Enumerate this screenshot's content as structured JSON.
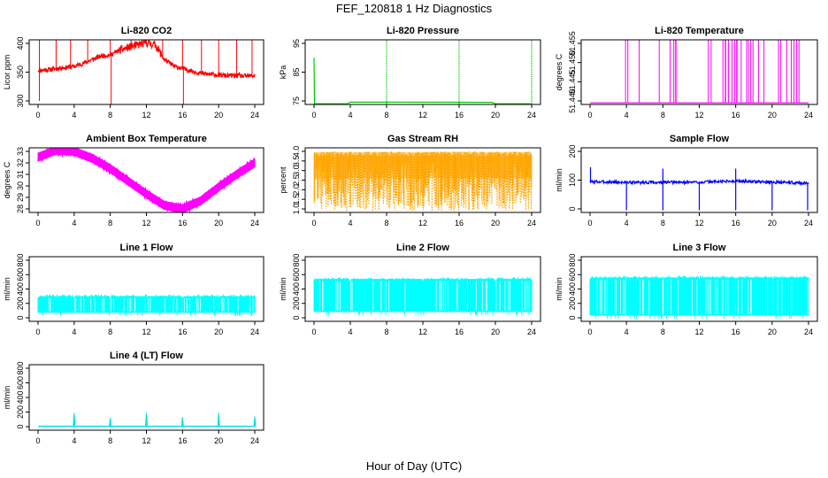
{
  "figure": {
    "title": "FEF_120818  1 Hz Diagnostics",
    "xlabel": "Hour of Day (UTC)"
  },
  "chart_data": [
    {
      "type": "line",
      "title": "Li-820 CO2",
      "ylabel": "Licor ppm",
      "xlim": [
        0,
        24
      ],
      "ylim": [
        300,
        400
      ],
      "xticks": [
        "0",
        "4",
        "8",
        "12",
        "16",
        "20",
        "24"
      ],
      "yticks": [
        {
          "v": 300,
          "label": "300"
        },
        {
          "v": 350,
          "label": "350"
        },
        {
          "v": 400,
          "label": "400"
        }
      ],
      "color": "#ff0000",
      "render": "co2",
      "series": {
        "x": [
          0,
          1,
          2,
          3,
          4,
          5,
          6,
          7,
          8,
          9,
          10,
          11,
          12,
          13,
          14,
          15,
          16,
          17,
          18,
          19,
          20,
          21,
          22,
          23,
          24
        ],
        "y": [
          353,
          354,
          356,
          358,
          360,
          365,
          372,
          378,
          380,
          388,
          393,
          397,
          401,
          397,
          372,
          361,
          356,
          352,
          348,
          346,
          345,
          344,
          344,
          343,
          344
        ]
      }
    },
    {
      "type": "line",
      "title": "Li-820 Pressure",
      "ylabel": "kPa",
      "xlim": [
        0,
        24
      ],
      "ylim": [
        75,
        95
      ],
      "xticks": [
        "0",
        "4",
        "8",
        "12",
        "16",
        "20",
        "24"
      ],
      "yticks": [
        {
          "v": 75,
          "label": "75"
        },
        {
          "v": 85,
          "label": "85"
        },
        {
          "v": 95,
          "label": "95"
        }
      ],
      "color": "#00c800",
      "render": "pressure",
      "series": {
        "x": [
          0,
          4,
          8,
          12,
          16,
          20,
          24
        ],
        "y": [
          74,
          74.5,
          74.5,
          74.5,
          74.5,
          74,
          74
        ]
      }
    },
    {
      "type": "line",
      "title": "Li-820 Temperature",
      "ylabel": "degrees C",
      "xlim": [
        0,
        24
      ],
      "ylim": [
        51.44,
        51.455
      ],
      "xticks": [
        "0",
        "4",
        "8",
        "12",
        "16",
        "20",
        "24"
      ],
      "yticks": [
        {
          "v": 51.44,
          "label": "51.440"
        },
        {
          "v": 51.445,
          "label": "51.445"
        },
        {
          "v": 51.45,
          "label": "51.450"
        },
        {
          "v": 51.455,
          "label": "51.455"
        }
      ],
      "color": "#ff00ff",
      "render": "licortemp",
      "series": {
        "x": [
          0,
          24
        ],
        "y": [
          51.4395,
          51.4395
        ]
      }
    },
    {
      "type": "line",
      "title": "Ambient Box Temperature",
      "ylabel": "degrees C",
      "xlim": [
        0,
        24
      ],
      "ylim": [
        28,
        33
      ],
      "xticks": [
        "0",
        "4",
        "8",
        "12",
        "16",
        "20",
        "24"
      ],
      "yticks": [
        {
          "v": 28,
          "label": "28"
        },
        {
          "v": 29,
          "label": "29"
        },
        {
          "v": 30,
          "label": "30"
        },
        {
          "v": 31,
          "label": "31"
        },
        {
          "v": 32,
          "label": "32"
        },
        {
          "v": 33,
          "label": "33"
        }
      ],
      "color": "#ff00ff",
      "render": "band",
      "series": {
        "x": [
          0,
          2,
          4,
          6,
          8,
          10,
          12,
          14,
          16,
          18,
          20,
          22,
          24
        ],
        "y": [
          32.5,
          33.1,
          33.0,
          32.4,
          31.5,
          30.4,
          29.3,
          28.3,
          28.0,
          28.7,
          29.9,
          31.0,
          32.0
        ]
      }
    },
    {
      "type": "line",
      "title": "Gas Stream RH",
      "ylabel": "percent",
      "xlim": [
        0,
        24
      ],
      "ylim": [
        1,
        4
      ],
      "xticks": [
        "0",
        "4",
        "8",
        "12",
        "16",
        "20",
        "24"
      ],
      "yticks": [
        {
          "v": 1,
          "label": "1.0"
        },
        {
          "v": 1.5,
          "label": "1.5"
        },
        {
          "v": 2,
          "label": "2.0"
        },
        {
          "v": 2.5,
          "label": "2.5"
        },
        {
          "v": 3,
          "label": "3.0"
        },
        {
          "v": 3.5,
          "label": "3.5"
        },
        {
          "v": 4,
          "label": "4.0"
        }
      ],
      "color": "#ffa500",
      "render": "rh",
      "series": {
        "x": [
          0,
          24
        ],
        "y": [
          3.8,
          3.8
        ]
      }
    },
    {
      "type": "line",
      "title": "Sample Flow",
      "ylabel": "ml/min",
      "xlim": [
        0,
        24
      ],
      "ylim": [
        0,
        200
      ],
      "xticks": [
        "0",
        "4",
        "8",
        "12",
        "16",
        "20",
        "24"
      ],
      "yticks": [
        {
          "v": 0,
          "label": "0"
        },
        {
          "v": 100,
          "label": "100"
        },
        {
          "v": 200,
          "label": "200"
        }
      ],
      "color": "#0000ff",
      "render": "sample",
      "series": {
        "x": [
          0,
          4,
          8,
          12,
          16,
          20,
          24
        ],
        "y": [
          95,
          92,
          92,
          93,
          97,
          93,
          90
        ]
      }
    },
    {
      "type": "line",
      "title": "Line 1 Flow",
      "ylabel": "ml/min",
      "xlim": [
        0,
        24
      ],
      "ylim": [
        0,
        800
      ],
      "xticks": [
        "0",
        "4",
        "8",
        "12",
        "16",
        "20",
        "24"
      ],
      "yticks": [
        {
          "v": 0,
          "label": "0"
        },
        {
          "v": 200,
          "label": "200"
        },
        {
          "v": 400,
          "label": "400"
        },
        {
          "v": 600,
          "label": "600"
        },
        {
          "v": 800,
          "label": "800"
        }
      ],
      "color": "#00ffff",
      "render": "flowband",
      "band": [
        70,
        300
      ],
      "series": {
        "x": [
          0,
          24
        ],
        "y": [
          300,
          300
        ]
      }
    },
    {
      "type": "line",
      "title": "Line 2 Flow",
      "ylabel": "ml/min",
      "xlim": [
        0,
        24
      ],
      "ylim": [
        0,
        800
      ],
      "xticks": [
        "0",
        "4",
        "8",
        "12",
        "16",
        "20",
        "24"
      ],
      "yticks": [
        {
          "v": 0,
          "label": "0"
        },
        {
          "v": 200,
          "label": "200"
        },
        {
          "v": 400,
          "label": "400"
        },
        {
          "v": 600,
          "label": "600"
        },
        {
          "v": 800,
          "label": "800"
        }
      ],
      "color": "#00ffff",
      "render": "flowband",
      "band": [
        80,
        540
      ],
      "series": {
        "x": [
          0,
          24
        ],
        "y": [
          540,
          540
        ]
      }
    },
    {
      "type": "line",
      "title": "Line 3 Flow",
      "ylabel": "ml/min",
      "xlim": [
        0,
        24
      ],
      "ylim": [
        0,
        800
      ],
      "xticks": [
        "0",
        "4",
        "8",
        "12",
        "16",
        "20",
        "24"
      ],
      "yticks": [
        {
          "v": 0,
          "label": "0"
        },
        {
          "v": 200,
          "label": "200"
        },
        {
          "v": 400,
          "label": "400"
        },
        {
          "v": 600,
          "label": "600"
        },
        {
          "v": 800,
          "label": "800"
        }
      ],
      "color": "#00ffff",
      "render": "flowband",
      "band": [
        30,
        560
      ],
      "series": {
        "x": [
          0,
          24
        ],
        "y": [
          560,
          560
        ]
      }
    },
    {
      "type": "line",
      "title": "Line 4 (LT) Flow",
      "ylabel": "ml/min",
      "xlim": [
        0,
        24
      ],
      "ylim": [
        0,
        800
      ],
      "xticks": [
        "0",
        "4",
        "8",
        "12",
        "16",
        "20",
        "24"
      ],
      "yticks": [
        {
          "v": 0,
          "label": "0"
        },
        {
          "v": 200,
          "label": "200"
        },
        {
          "v": 400,
          "label": "400"
        },
        {
          "v": 600,
          "label": "600"
        },
        {
          "v": 800,
          "label": "800"
        }
      ],
      "color": "#00e0e0",
      "render": "lt",
      "series": {
        "x": [
          0,
          4,
          8,
          12,
          16,
          20,
          24
        ],
        "y": [
          5,
          5,
          5,
          5,
          5,
          5,
          5
        ]
      }
    }
  ]
}
